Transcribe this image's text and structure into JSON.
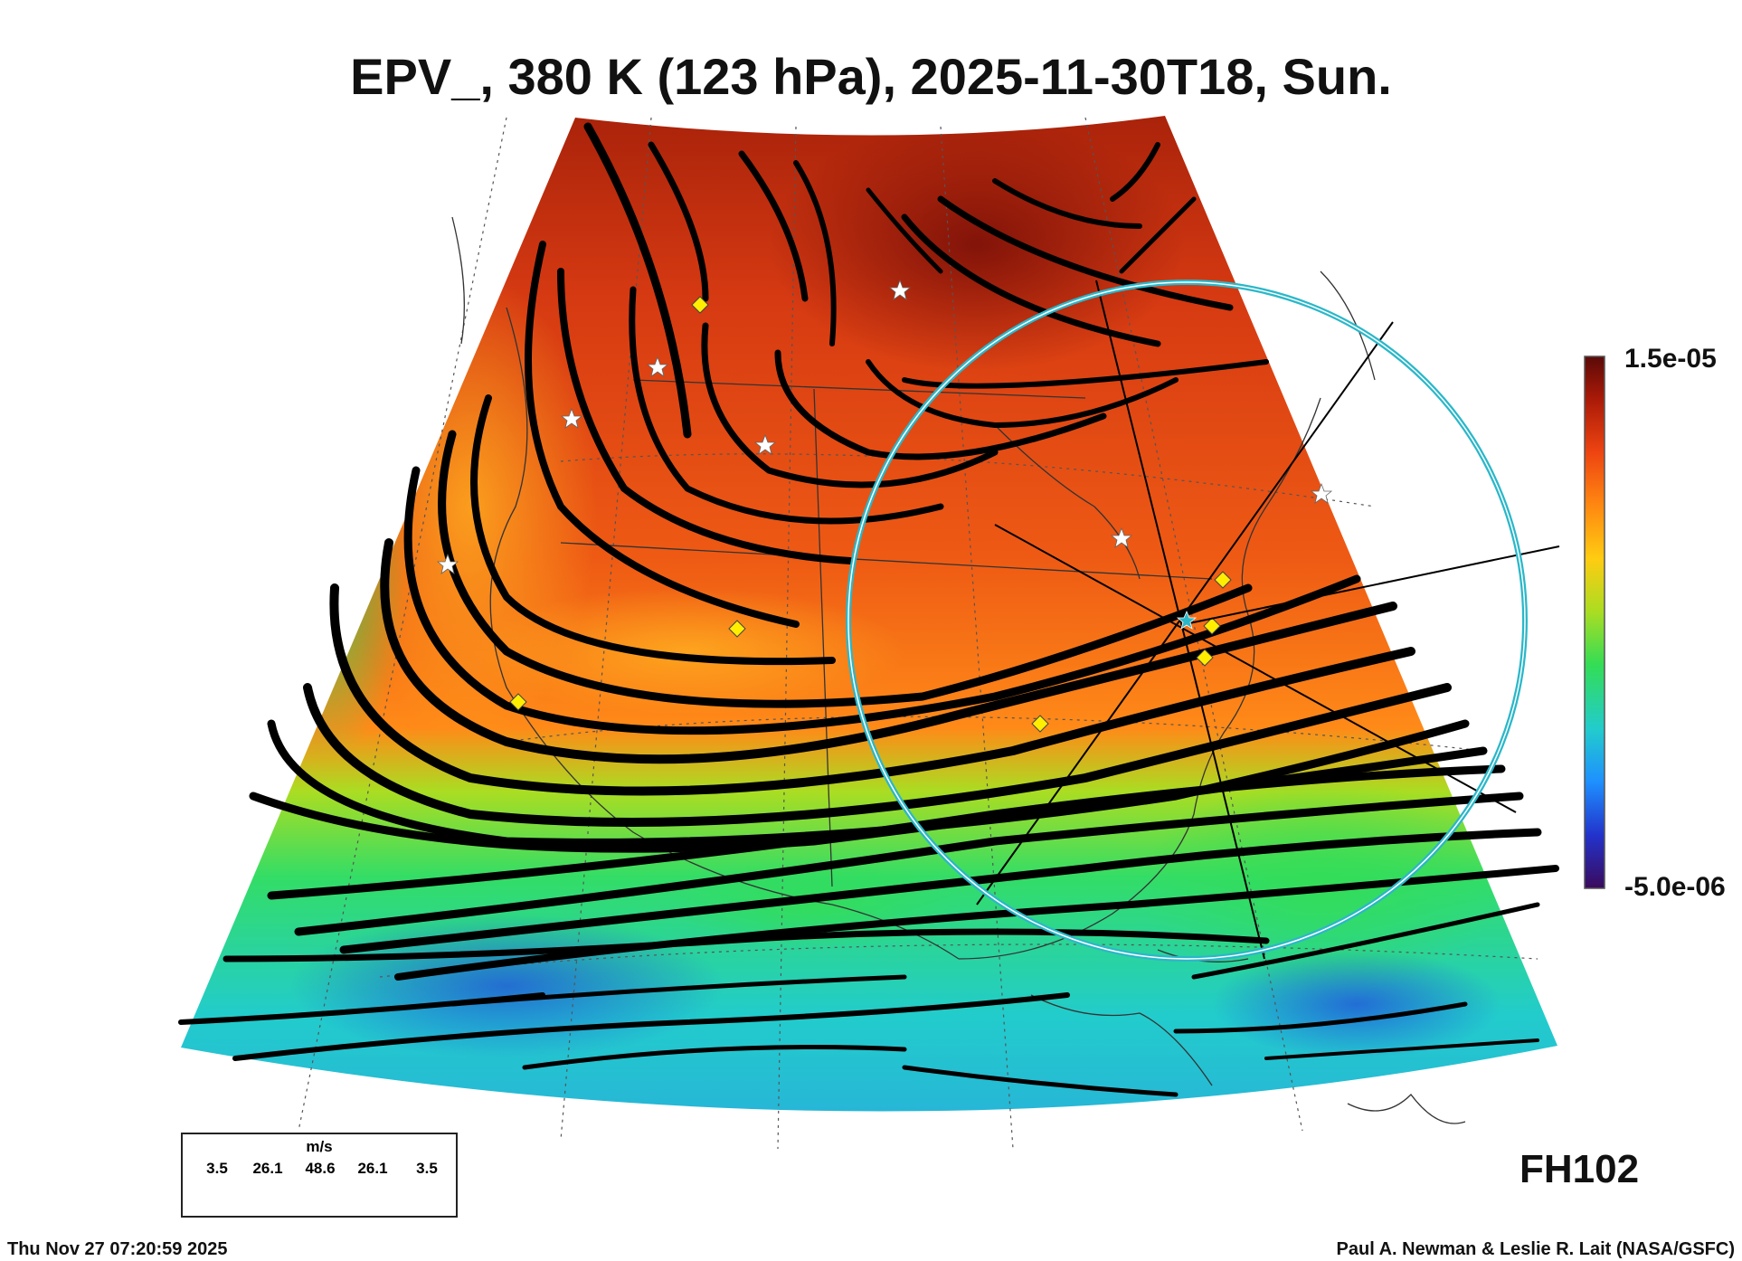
{
  "title": "EPV_, 380 K (123 hPa), 2025-11-30T18, Sun.",
  "colorbar": {
    "max_label": "1.5e-05",
    "min_label": "-5.0e-06",
    "stops": [
      "#3a0a5c",
      "#2233cc",
      "#1e90ff",
      "#22cccc",
      "#33dd55",
      "#aadd22",
      "#ffcc11",
      "#ff8811",
      "#ee4411",
      "#aa1a08",
      "#5a0a08"
    ]
  },
  "forecast_hour": "FH102",
  "legend": {
    "unit": "m/s",
    "values": [
      "3.5",
      "26.1",
      "48.6",
      "26.1",
      "3.5"
    ]
  },
  "footer": {
    "timestamp": "Thu Nov 27 07:20:59 2025",
    "credit": "Paul A. Newman & Leslie R. Lait (NASA/GSFC)"
  },
  "colors": {
    "ring": "#2ab7c9",
    "diamond": "#ffee00",
    "star": "#ffffff",
    "streamline": "#000000"
  }
}
